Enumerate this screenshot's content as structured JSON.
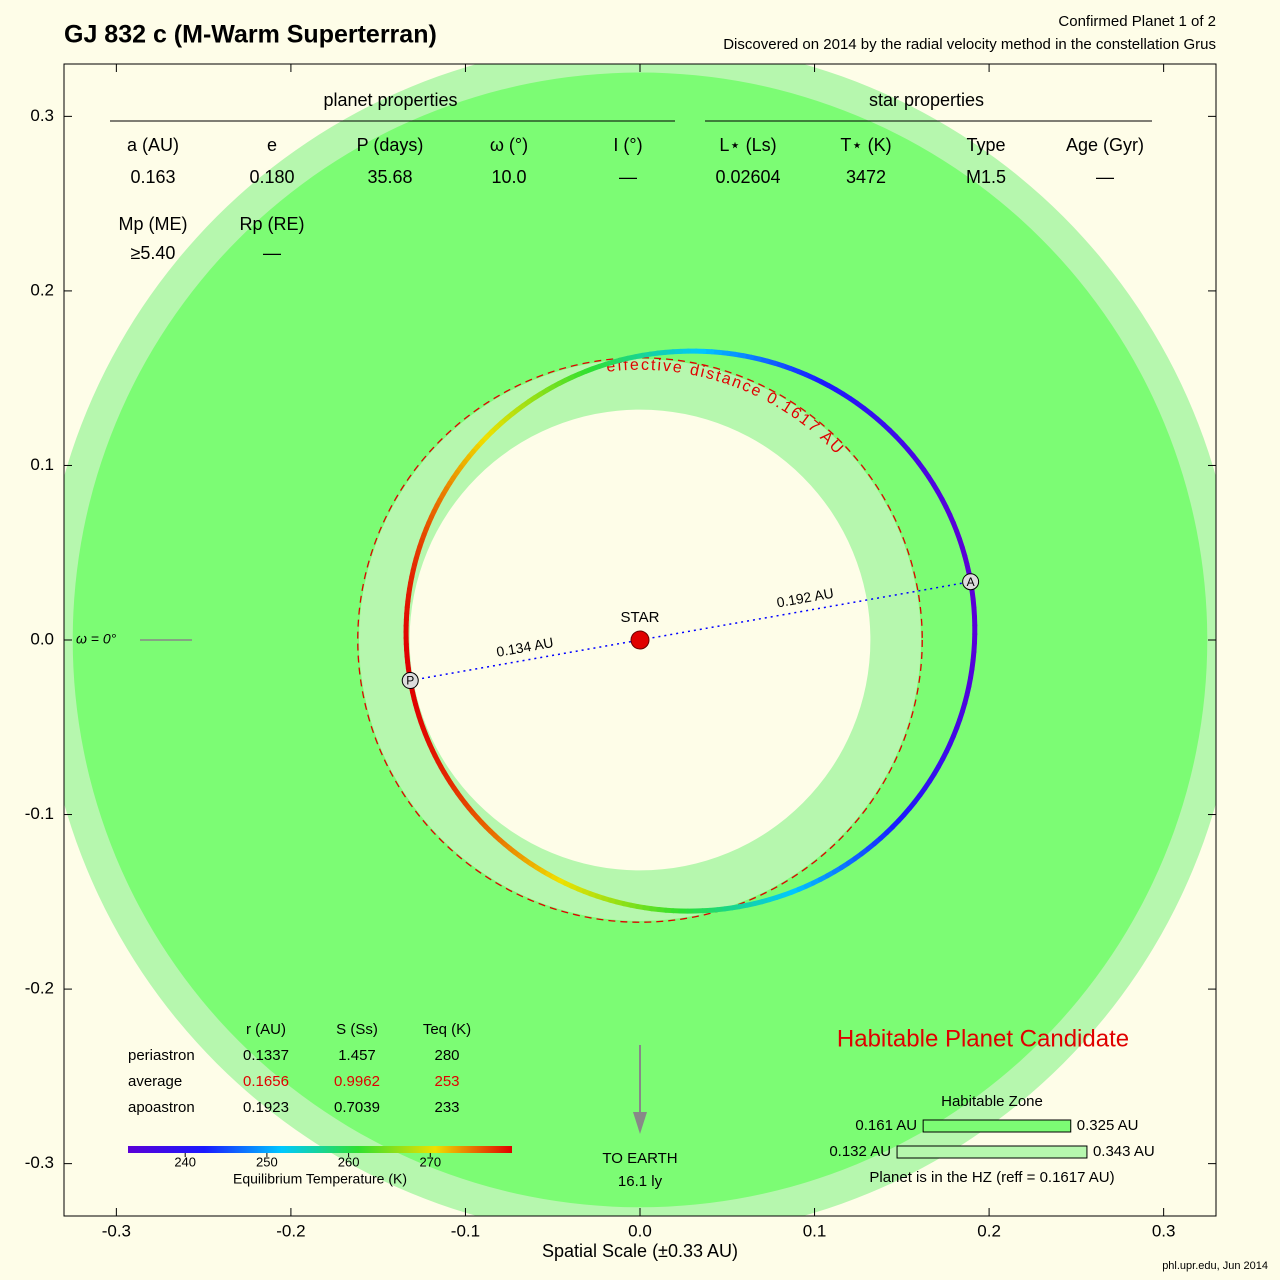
{
  "header": {
    "title": "GJ 832 c (M-Warm Superterran)",
    "status": "Confirmed Planet 1 of 2",
    "discovery": "Discovered on 2014 by the radial velocity method in the constellation Grus"
  },
  "planet_properties": {
    "title": "planet properties",
    "headers": [
      "a (AU)",
      "e",
      "P (days)",
      "ω (°)",
      "I (°)"
    ],
    "values": [
      "0.163",
      "0.180",
      "35.68",
      "10.0",
      "—"
    ],
    "mass_headers": [
      "Mp (ME)",
      "Rp (RE)"
    ],
    "mass_values": [
      "≥5.40",
      "—"
    ]
  },
  "star_properties": {
    "title": "star properties",
    "headers": [
      "L⋆ (Ls)",
      "T⋆ (K)",
      "Type",
      "Age (Gyr)"
    ],
    "values": [
      "0.02604",
      "3472",
      "M1.5",
      "—"
    ]
  },
  "orbit_table": {
    "headers": [
      "r (AU)",
      "S (Ss)",
      "Teq (K)"
    ],
    "rows": [
      [
        "periastron",
        "0.1337",
        "1.457",
        "280"
      ],
      [
        "average",
        "0.1656",
        "0.9962",
        "253"
      ],
      [
        "apoastron",
        "0.1923",
        "0.7039",
        "233"
      ]
    ]
  },
  "chart_data": {
    "type": "orbit",
    "xlim": [
      -0.33,
      0.33
    ],
    "ylim": [
      -0.33,
      0.33
    ],
    "xticks": [
      -0.3,
      -0.2,
      -0.1,
      {
        "value": 0,
        "label": "0.0"
      },
      0.1,
      0.2,
      0.3
    ],
    "yticks": [
      -0.3,
      -0.2,
      -0.1,
      {
        "value": 0,
        "label": "0.0"
      },
      0.1,
      0.2,
      0.3
    ],
    "xlabel": "Spatial Scale (±0.33 AU)",
    "effective_distance": {
      "value": 0.1617,
      "label": "effective distance 0.1617 AU"
    },
    "markers": [
      "P",
      "A"
    ],
    "periastron_label": "0.134 AU",
    "apoastron_label": "0.192 AU",
    "star_label": "STAR",
    "omega_label": "ω = 0°",
    "earth": [
      "TO EARTH",
      "16.1 ly"
    ],
    "candidate": "Habitable Planet Candidate",
    "habitable_zone": {
      "title": "Habitable Zone",
      "conservative": [
        {
          "value": 0.161,
          "label": "0.161 AU"
        },
        {
          "value": 0.325,
          "label": "0.325 AU"
        }
      ],
      "optimistic": [
        {
          "value": 0.132,
          "label": "0.132 AU"
        },
        {
          "value": 0.343,
          "label": "0.343 AU"
        }
      ],
      "note": "Planet is in the HZ (reff = 0.1617 AU)"
    },
    "colorbar": {
      "lim": [
        233,
        280
      ],
      "ticks": [
        240,
        250,
        260,
        270
      ],
      "label": "Equilibrium Temperature (K)"
    }
  },
  "footer": "phl.upr.edu, Jun 2014"
}
